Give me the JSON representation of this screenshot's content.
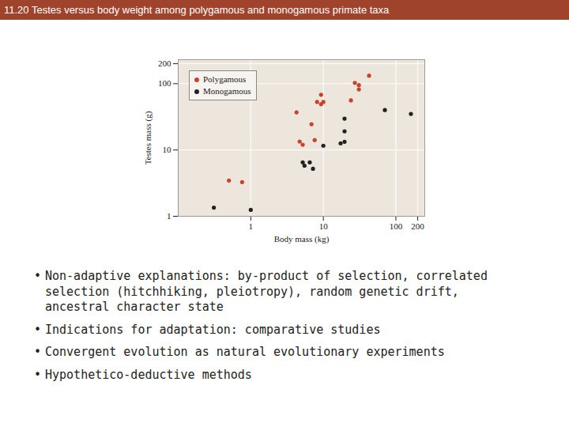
{
  "header": {
    "title": "11.20 Testes versus body weight among polygamous and monogamous primate taxa"
  },
  "chart_data": {
    "type": "scatter",
    "xlabel": "Body mass (kg)",
    "ylabel": "Testes mass (g)",
    "log": true,
    "grid": true,
    "legend": "top-left",
    "xlim": [
      0.1,
      250
    ],
    "xticks": [
      1,
      10,
      100,
      200
    ],
    "ylim": [
      1,
      230
    ],
    "yticks": [
      1,
      10,
      100,
      200
    ],
    "series": [
      {
        "name": "Polygamous",
        "color": "#c8432b",
        "marker": "circle",
        "x": [
          0.5,
          0.76,
          4.27,
          4.72,
          5.2,
          6.87,
          7.6,
          8.2,
          9.3,
          9.3,
          10,
          24,
          27.2,
          30.9,
          30.9,
          42.7
        ],
        "values": [
          3.46,
          3.27,
          37,
          13.4,
          12.0,
          24.5,
          14.1,
          53,
          49,
          68,
          53,
          56,
          103,
          82,
          95,
          132
        ]
      },
      {
        "name": "Monogamous",
        "color": "#222222",
        "marker": "circle",
        "x": [
          0.31,
          1.0,
          5.2,
          5.5,
          6.5,
          7.2,
          10,
          17.3,
          19.6,
          19.6,
          19.6,
          70.5,
          161
        ],
        "values": [
          1.35,
          1.25,
          6.5,
          5.8,
          6.5,
          5.2,
          11.6,
          12.6,
          13.3,
          29.7,
          19.1,
          40,
          35
        ]
      }
    ]
  },
  "bullets": [
    "Non-adaptive explanations: by-product of selection, correlated selection (hitchhiking, pleiotropy), random genetic drift, ancestral character state",
    "Indications for adaptation: comparative studies",
    "Convergent evolution as natural evolutionary experiments",
    "Hypothetico-deductive methods"
  ]
}
